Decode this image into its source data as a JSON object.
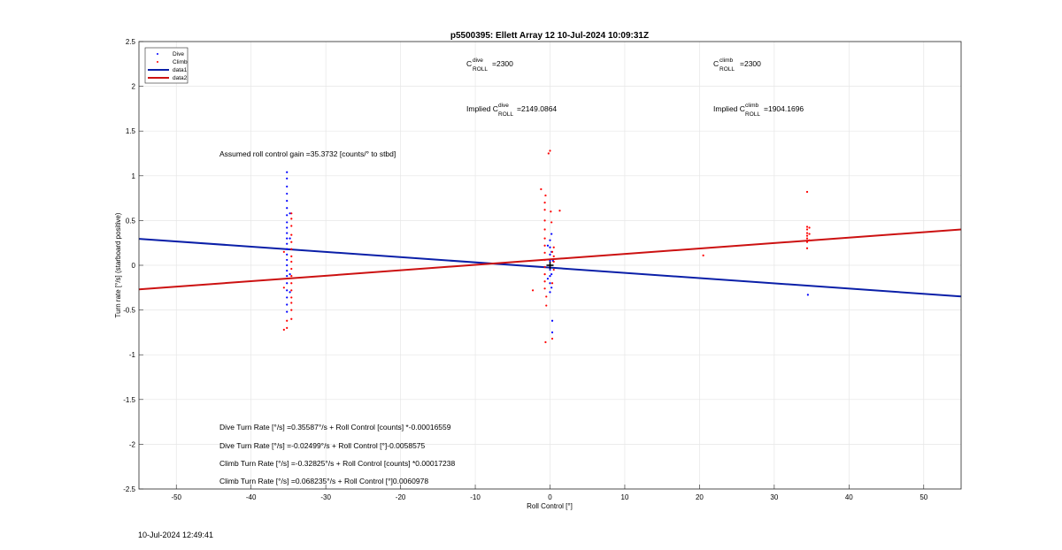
{
  "chart_data": {
    "type": "scatter",
    "title": "p5500395: Ellett Array 12 10-Jul-2024 10:09:31Z",
    "xlabel": "Roll Control [°]",
    "ylabel": "Turn rate [°/s] (starboard positive)",
    "xlim": [
      -55,
      55
    ],
    "ylim": [
      -2.5,
      2.5
    ],
    "xticks": [
      -50,
      -40,
      -30,
      -20,
      -10,
      0,
      10,
      20,
      30,
      40,
      50
    ],
    "yticks": [
      -2.5,
      -2,
      -1.5,
      -1,
      -0.5,
      0,
      0.5,
      1,
      1.5,
      2,
      2.5
    ],
    "grid": true,
    "legend_position": "top-left",
    "legend": [
      {
        "name": "Dive",
        "kind": "dot",
        "color": "#0000ff"
      },
      {
        "name": "Climb",
        "kind": "dot",
        "color": "#ff0000"
      },
      {
        "name": "data1",
        "kind": "line",
        "color": "#0a1fa8"
      },
      {
        "name": "data2",
        "kind": "line",
        "color": "#cc1111"
      }
    ],
    "series": [
      {
        "name": "Dive",
        "color": "#0000ff",
        "points": [
          [
            -35.2,
            1.04
          ],
          [
            -35.2,
            0.97
          ],
          [
            -35.2,
            0.88
          ],
          [
            -35.2,
            0.8
          ],
          [
            -35.2,
            0.72
          ],
          [
            -35.2,
            0.64
          ],
          [
            -35.2,
            0.56
          ],
          [
            -35.2,
            0.48
          ],
          [
            -35.2,
            0.42
          ],
          [
            -35.2,
            0.36
          ],
          [
            -35.2,
            0.3
          ],
          [
            -35.2,
            0.24
          ],
          [
            -35.2,
            0.18
          ],
          [
            -35.2,
            0.12
          ],
          [
            -35.2,
            0.06
          ],
          [
            -35.2,
            0.0
          ],
          [
            -35.2,
            -0.06
          ],
          [
            -35.2,
            -0.12
          ],
          [
            -35.2,
            -0.2
          ],
          [
            -35.2,
            -0.28
          ],
          [
            -35.2,
            -0.36
          ],
          [
            -35.2,
            -0.44
          ],
          [
            -35.2,
            -0.52
          ],
          [
            -34.8,
            0.58
          ],
          [
            -34.8,
            0.3
          ],
          [
            -34.8,
            -0.1
          ],
          [
            -34.8,
            -0.3
          ],
          [
            0.0,
            0.28
          ],
          [
            0.0,
            0.2
          ],
          [
            0.0,
            0.12
          ],
          [
            0.0,
            0.05
          ],
          [
            0.0,
            0.0
          ],
          [
            0.0,
            -0.05
          ],
          [
            0.0,
            -0.12
          ],
          [
            0.0,
            -0.2
          ],
          [
            0.0,
            -0.3
          ],
          [
            0.2,
            0.35
          ],
          [
            0.2,
            0.15
          ],
          [
            0.2,
            -0.1
          ],
          [
            0.2,
            -0.25
          ],
          [
            0.3,
            -0.62
          ],
          [
            0.3,
            -0.75
          ],
          [
            -0.3,
            0.22
          ],
          [
            -0.3,
            -0.15
          ],
          [
            0.4,
            0.05
          ],
          [
            34.5,
            -0.33
          ]
        ]
      },
      {
        "name": "Climb",
        "color": "#ff0000",
        "points": [
          [
            -35.2,
            -0.7
          ],
          [
            -35.2,
            -0.62
          ],
          [
            -34.6,
            -0.6
          ],
          [
            -34.6,
            -0.5
          ],
          [
            -34.6,
            -0.42
          ],
          [
            -34.6,
            -0.36
          ],
          [
            -34.6,
            -0.28
          ],
          [
            -34.6,
            -0.2
          ],
          [
            -34.6,
            -0.12
          ],
          [
            -34.6,
            -0.04
          ],
          [
            -34.6,
            0.04
          ],
          [
            -34.6,
            0.1
          ],
          [
            -34.6,
            0.18
          ],
          [
            -34.6,
            0.26
          ],
          [
            -34.6,
            0.34
          ],
          [
            -34.6,
            0.44
          ],
          [
            -34.6,
            0.52
          ],
          [
            -34.6,
            0.58
          ],
          [
            -35.6,
            0.15
          ],
          [
            -35.6,
            -0.25
          ],
          [
            -35.6,
            -0.72
          ],
          [
            -1.2,
            0.85
          ],
          [
            -2.3,
            -0.28
          ],
          [
            -0.6,
            0.78
          ],
          [
            -0.7,
            0.7
          ],
          [
            -0.7,
            0.62
          ],
          [
            -0.7,
            0.5
          ],
          [
            -0.7,
            0.4
          ],
          [
            -0.7,
            0.3
          ],
          [
            -0.7,
            0.22
          ],
          [
            -0.7,
            0.14
          ],
          [
            -0.7,
            0.06
          ],
          [
            -0.7,
            -0.02
          ],
          [
            -0.7,
            -0.1
          ],
          [
            -0.7,
            -0.18
          ],
          [
            -0.7,
            -0.26
          ],
          [
            -0.5,
            -0.35
          ],
          [
            -0.5,
            -0.45
          ],
          [
            -0.6,
            -0.86
          ],
          [
            0.0,
            1.28
          ],
          [
            -0.2,
            1.25
          ],
          [
            0.1,
            0.6
          ],
          [
            0.5,
            0.2
          ],
          [
            0.5,
            0.1
          ],
          [
            0.5,
            0.04
          ],
          [
            0.5,
            -0.05
          ],
          [
            0.3,
            0.15
          ],
          [
            0.3,
            -0.2
          ],
          [
            0.3,
            -0.82
          ],
          [
            1.3,
            0.61
          ],
          [
            0.2,
            0.48
          ],
          [
            20.5,
            0.11
          ],
          [
            34.4,
            0.82
          ],
          [
            34.4,
            0.43
          ],
          [
            34.4,
            0.4
          ],
          [
            34.4,
            0.36
          ],
          [
            34.4,
            0.33
          ],
          [
            34.4,
            0.3
          ],
          [
            34.4,
            0.26
          ],
          [
            34.4,
            0.19
          ],
          [
            34.7,
            0.42
          ],
          [
            34.7,
            0.35
          ],
          [
            34.7,
            0.28
          ]
        ]
      },
      {
        "name": "data1",
        "kind": "line",
        "color": "#0a1fa8",
        "x": [
          -55,
          55
        ],
        "y": [
          0.2958,
          -0.3481
        ]
      },
      {
        "name": "data2",
        "kind": "line",
        "color": "#cc1111",
        "x": [
          -55,
          55
        ],
        "y": [
          -0.2691,
          0.4006
        ]
      }
    ],
    "annotations": {
      "c_dive": {
        "base": "C",
        "sup": "dive",
        "sub": "ROLL",
        "value": "=2300"
      },
      "c_climb": {
        "base": "C",
        "sup": "climb",
        "sub": "ROLL",
        "value": "=2300"
      },
      "implied_dive": {
        "prefix": "Implied C",
        "sup": "dive",
        "sub": "ROLL",
        "value": "=2149.0864"
      },
      "implied_climb": {
        "prefix": "Implied C",
        "sup": "climb",
        "sub": "ROLL",
        "value": "=1904.1696"
      },
      "gain": "Assumed roll control gain =35.3732 [counts/° to stbd]",
      "eq1": "Dive Turn Rate [°/s] =0.35587°/s + Roll Control [counts] *-0.00016559",
      "eq2": "Dive Turn Rate [°/s] =-0.02499°/s + Roll Control [°]-0.0058575",
      "eq3": "Climb Turn Rate [°/s] =-0.32825°/s + Roll Control [counts] *0.00017238",
      "eq4": "Climb Turn Rate [°/s] =0.068235°/s + Roll Control [°]0.0060978"
    },
    "marker": {
      "x": 0,
      "y": 0,
      "label": "center-cross"
    }
  },
  "footer": {
    "timestamp": "10-Jul-2024 12:49:41"
  }
}
